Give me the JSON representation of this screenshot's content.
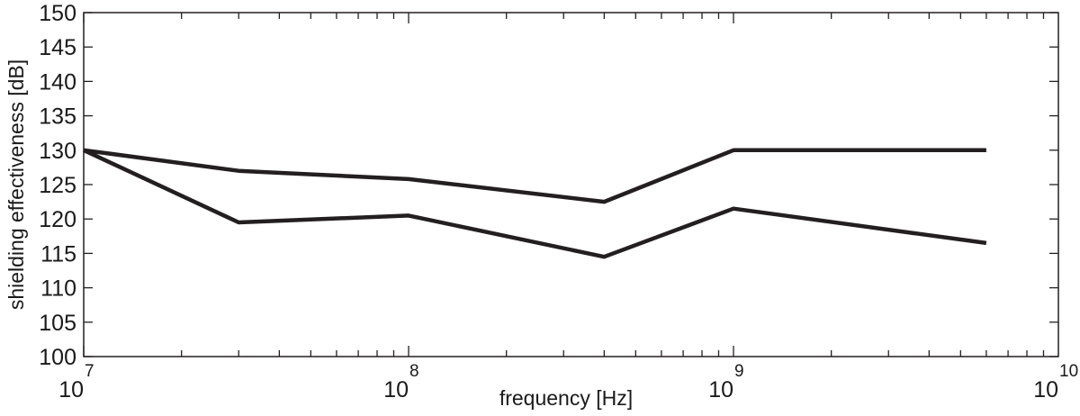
{
  "chart_data": {
    "type": "line",
    "xscale": "log",
    "xlim": [
      10000000,
      10000000000
    ],
    "ylim": [
      100,
      150
    ],
    "xlabel": "frequency [Hz]",
    "ylabel": "shielding effectiveness [dB]",
    "y_ticks": [
      "100",
      "105",
      "110",
      "115",
      "120",
      "125",
      "130",
      "135",
      "140",
      "145",
      "150"
    ],
    "x_ticks": [
      {
        "base": "10",
        "exp": "7",
        "value": 10000000
      },
      {
        "base": "10",
        "exp": "8",
        "value": 100000000
      },
      {
        "base": "10",
        "exp": "9",
        "value": 1000000000
      },
      {
        "base": "10",
        "exp": "10",
        "value": 10000000000
      }
    ],
    "series": [
      {
        "x": [
          10000000,
          30000000,
          100000000,
          400000000,
          1000000000,
          6000000000
        ],
        "y": [
          130,
          127,
          125.8,
          122.5,
          130,
          130
        ]
      },
      {
        "x": [
          10000000,
          30000000,
          100000000,
          400000000,
          1000000000,
          6000000000
        ],
        "y": [
          130,
          119.5,
          120.5,
          114.5,
          121.5,
          116.5
        ]
      }
    ],
    "grid": false,
    "line_color": "#231f20"
  }
}
